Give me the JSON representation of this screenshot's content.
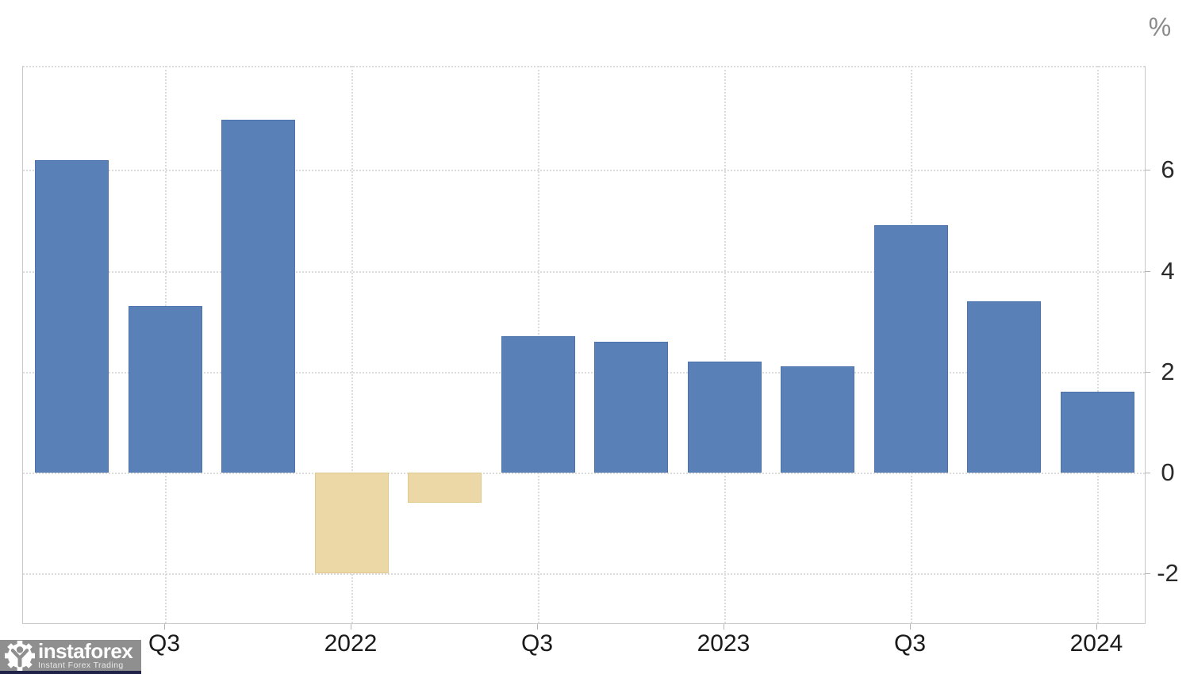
{
  "chart_data": {
    "type": "bar",
    "title": "",
    "xlabel": "",
    "ylabel": "%",
    "categories": [
      "",
      "Q3",
      "",
      "2022",
      "",
      "Q3",
      "",
      "2023",
      "",
      "Q3",
      "",
      "2024"
    ],
    "values": [
      6.2,
      3.3,
      7.0,
      -2.0,
      -0.6,
      2.7,
      2.6,
      2.2,
      2.1,
      4.9,
      3.4,
      1.6
    ],
    "bar_colors": [
      "blue",
      "blue",
      "blue",
      "tan",
      "tan",
      "blue",
      "blue",
      "blue",
      "blue",
      "blue",
      "blue",
      "blue"
    ],
    "palette": {
      "blue": "#5a80b8",
      "blue_border": "#4c73ab",
      "tan": "#ecd8a6",
      "tan_border": "#e0c98f"
    },
    "y_ticks": [
      6,
      4,
      2,
      0,
      -2
    ],
    "ylim": [
      -3.0,
      8.05
    ],
    "grid": "dotted",
    "legend": "none"
  },
  "watermark": {
    "brand": "instaforex",
    "tagline": "Instant Forex Trading"
  }
}
